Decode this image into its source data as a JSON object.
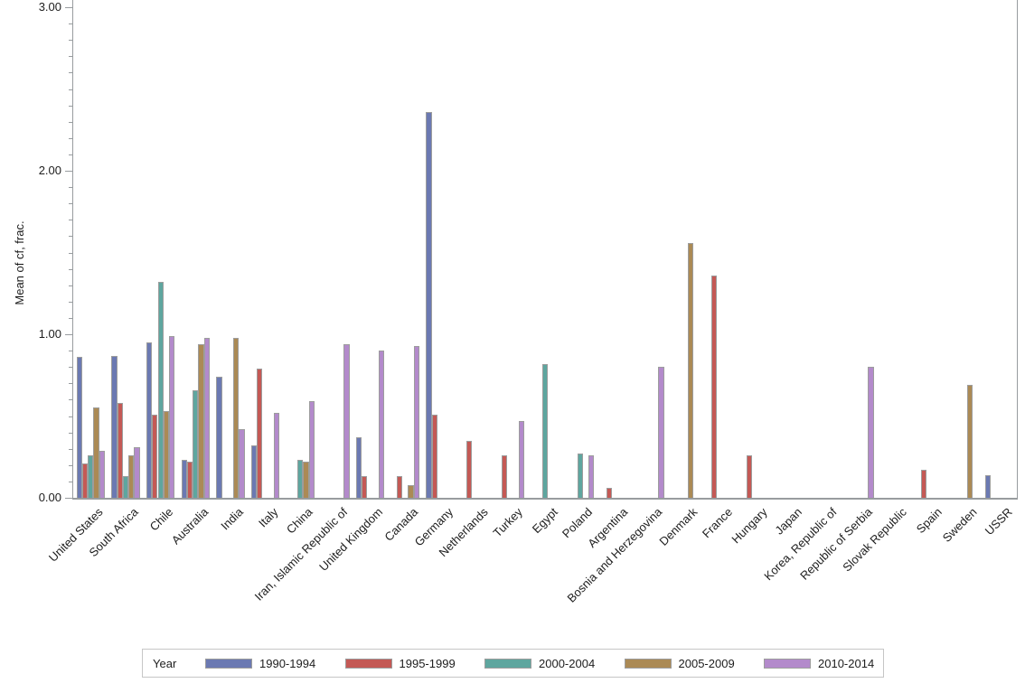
{
  "chart_data": {
    "type": "bar",
    "title": "",
    "ylabel": "Mean of cf, frac.",
    "xlabel": "",
    "ylim": [
      0,
      3.05
    ],
    "ytick_labels": [
      "0.00",
      "1.00",
      "2.00",
      "3.00"
    ],
    "ytick_values": [
      0,
      1,
      2,
      3
    ],
    "minor_tick_step": 0.1,
    "grid": "off",
    "legend_position": "bottom",
    "categories": [
      "United States",
      "South Africa",
      "Chile",
      "Australia",
      "India",
      "Italy",
      "China",
      "Iran, Islamic Republic of",
      "United Kingdom",
      "Canada",
      "Germany",
      "Netherlands",
      "Turkey",
      "Egypt",
      "Poland",
      "Argentina",
      "Bosnia and Herzegovina",
      "Denmark",
      "France",
      "Hungary",
      "Japan",
      "Korea, Republic of",
      "Republic of Serbia",
      "Slovak Republic",
      "Spain",
      "Sweden",
      "USSR"
    ],
    "series": [
      {
        "name": "1990-1994",
        "color": "#6b79b2",
        "values": [
          0.86,
          0.87,
          0.95,
          0.23,
          0.74,
          0.32,
          0,
          0,
          0.37,
          0,
          2.36,
          0,
          0,
          0,
          0,
          0,
          0,
          0,
          0,
          0,
          0,
          0,
          0,
          0,
          0,
          0,
          0.14
        ]
      },
      {
        "name": "1995-1999",
        "color": "#c45955",
        "values": [
          0.21,
          0.58,
          0.51,
          0.22,
          0,
          0.79,
          0,
          0,
          0.13,
          0.13,
          0.51,
          0.35,
          0.26,
          0,
          0,
          0.06,
          0,
          0,
          1.36,
          0.26,
          0,
          0,
          0,
          0,
          0.17,
          0,
          0
        ]
      },
      {
        "name": "2000-2004",
        "color": "#5ea69f",
        "values": [
          0.26,
          0.13,
          1.32,
          0.66,
          0,
          0,
          0.23,
          0,
          0,
          0,
          0,
          0,
          0,
          0.82,
          0.27,
          0,
          0,
          0,
          0,
          0,
          0,
          0,
          0,
          0,
          0,
          0,
          0
        ]
      },
      {
        "name": "2005-2009",
        "color": "#ab8a55",
        "values": [
          0.55,
          0.26,
          0.53,
          0.94,
          0.98,
          0,
          0.22,
          0,
          0,
          0.08,
          0,
          0,
          0,
          0,
          0,
          0,
          0,
          1.56,
          0,
          0,
          0,
          0,
          0,
          0,
          0,
          0.69,
          0
        ]
      },
      {
        "name": "2010-2014",
        "color": "#b38acb",
        "values": [
          0.29,
          0.31,
          0.99,
          0.98,
          0.42,
          0.52,
          0.59,
          0.94,
          0.9,
          0.93,
          0,
          0,
          0.47,
          0,
          0.26,
          0,
          0.8,
          0,
          0,
          0,
          0,
          0,
          0.8,
          0,
          0,
          0,
          0
        ]
      }
    ]
  },
  "legend": {
    "title": "Year"
  }
}
